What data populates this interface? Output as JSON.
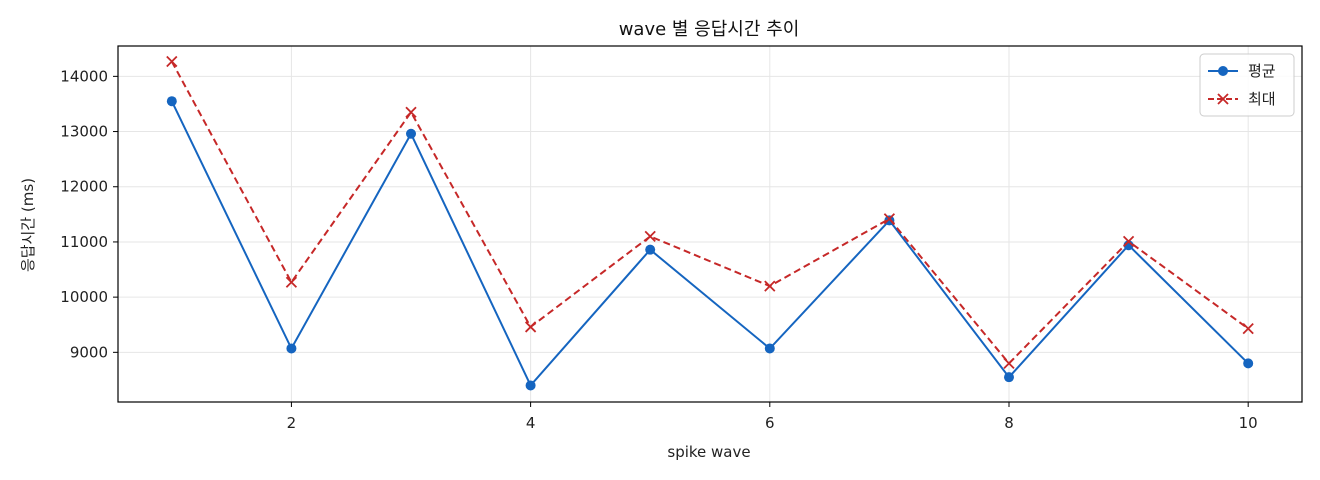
{
  "chart_data": {
    "type": "line",
    "title": "wave 별 응답시간 추이",
    "xlabel": "spike wave",
    "ylabel": "응답시간 (ms)",
    "x": [
      1,
      2,
      3,
      4,
      5,
      6,
      7,
      8,
      9,
      10
    ],
    "xlim": [
      0.55,
      10.45
    ],
    "ylim": [
      8100,
      14550
    ],
    "xticks": [
      2,
      4,
      6,
      8,
      10
    ],
    "yticks": [
      9000,
      10000,
      11000,
      12000,
      13000,
      14000
    ],
    "grid": true,
    "legend_position": "top-right",
    "series": [
      {
        "name": "평균",
        "color": "#1565c0",
        "line_style": "solid",
        "marker": "circle",
        "values": [
          13550,
          9070,
          12960,
          8400,
          10860,
          9070,
          11390,
          8550,
          10940,
          8800
        ]
      },
      {
        "name": "최대",
        "color": "#c62828",
        "line_style": "dashed",
        "marker": "x",
        "values": [
          14270,
          10270,
          13350,
          9460,
          11100,
          10200,
          11420,
          8800,
          11010,
          9430
        ]
      }
    ]
  }
}
